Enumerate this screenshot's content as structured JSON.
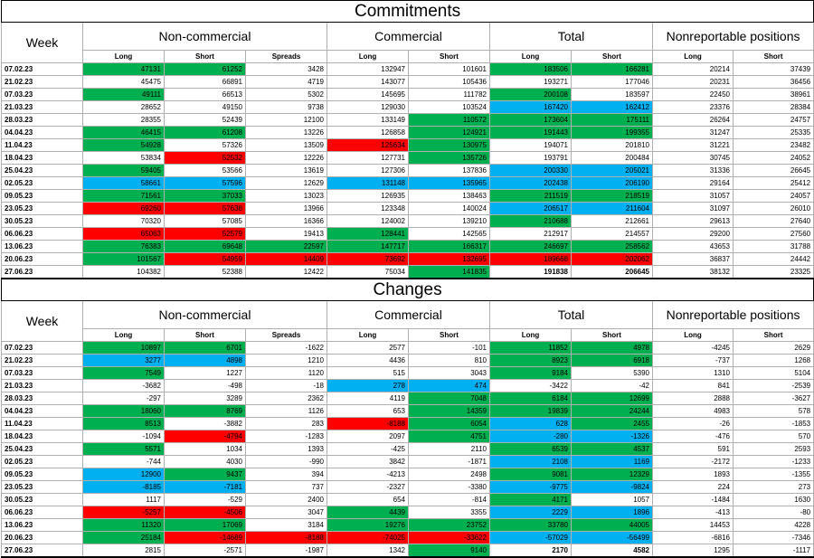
{
  "colors": {
    "green": "#00b050",
    "blue": "#00b0f0",
    "red": "#ff0000"
  },
  "commitments": {
    "title": "Commitments",
    "week_label": "Week",
    "groups": [
      "Non-commercial",
      "Commercial",
      "Total",
      "Nonreportable positions"
    ],
    "subheaders": [
      "Long",
      "Short",
      "Spreads",
      "Long",
      "Short",
      "Long",
      "Short",
      "Long",
      "Short"
    ],
    "rows": [
      {
        "week": "07.02.23",
        "v": [
          "47131",
          "61252",
          "3428",
          "132947",
          "101601",
          "183506",
          "166281",
          "20214",
          "37439"
        ],
        "c": [
          "g",
          "g",
          "",
          "",
          "",
          "g",
          "g",
          "",
          ""
        ]
      },
      {
        "week": "21.02.23",
        "v": [
          "45475",
          "66891",
          "4719",
          "143077",
          "105436",
          "193271",
          "177046",
          "20231",
          "36456"
        ],
        "c": [
          "",
          "",
          "",
          "",
          "",
          "",
          "",
          "",
          ""
        ]
      },
      {
        "week": "07.03.23",
        "v": [
          "49111",
          "66513",
          "5302",
          "145695",
          "111782",
          "200108",
          "183597",
          "22450",
          "38961"
        ],
        "c": [
          "g",
          "",
          "",
          "",
          "",
          "g",
          "",
          "",
          ""
        ]
      },
      {
        "week": "21.03.23",
        "v": [
          "28652",
          "49150",
          "9738",
          "129030",
          "103524",
          "167420",
          "162412",
          "23376",
          "28384"
        ],
        "c": [
          "",
          "",
          "",
          "",
          "",
          "b",
          "b",
          "",
          ""
        ]
      },
      {
        "week": "28.03.23",
        "v": [
          "28355",
          "52439",
          "12100",
          "133149",
          "110572",
          "173604",
          "175111",
          "26264",
          "24757"
        ],
        "c": [
          "",
          "",
          "",
          "",
          "g",
          "g",
          "g",
          "",
          ""
        ]
      },
      {
        "week": "04.04.23",
        "v": [
          "46415",
          "61208",
          "13226",
          "126858",
          "124921",
          "191443",
          "199355",
          "31247",
          "25335"
        ],
        "c": [
          "g",
          "g",
          "",
          "",
          "g",
          "g",
          "g",
          "",
          ""
        ]
      },
      {
        "week": "11.04.23",
        "v": [
          "54928",
          "57326",
          "13509",
          "125634",
          "130975",
          "194071",
          "201810",
          "31221",
          "23482"
        ],
        "c": [
          "g",
          "",
          "",
          "r",
          "g",
          "",
          "",
          "",
          ""
        ]
      },
      {
        "week": "18.04.23",
        "v": [
          "53834",
          "52532",
          "12226",
          "127731",
          "135726",
          "193791",
          "200484",
          "30745",
          "24052"
        ],
        "c": [
          "",
          "r",
          "",
          "",
          "g",
          "",
          "",
          "",
          ""
        ]
      },
      {
        "week": "25.04.23",
        "v": [
          "59405",
          "53566",
          "13619",
          "127306",
          "137836",
          "200330",
          "205021",
          "31336",
          "26645"
        ],
        "c": [
          "g",
          "",
          "",
          "",
          "",
          "b",
          "b",
          "",
          ""
        ]
      },
      {
        "week": "02.05.23",
        "v": [
          "58661",
          "57596",
          "12629",
          "131148",
          "135965",
          "202438",
          "206190",
          "29164",
          "25412"
        ],
        "c": [
          "b",
          "b",
          "",
          "b",
          "b",
          "b",
          "b",
          "",
          ""
        ]
      },
      {
        "week": "09.05.23",
        "v": [
          "71561",
          "37033",
          "13023",
          "126935",
          "138463",
          "211519",
          "218519",
          "31057",
          "24057"
        ],
        "c": [
          "g",
          "g",
          "",
          "",
          "",
          "g",
          "g",
          "",
          ""
        ]
      },
      {
        "week": "23.05.23",
        "v": [
          "69260",
          "57638",
          "13966",
          "123348",
          "140024",
          "206517",
          "211604",
          "31097",
          "26010"
        ],
        "c": [
          "r",
          "r",
          "",
          "",
          "",
          "b",
          "b",
          "",
          ""
        ]
      },
      {
        "week": "30.05.23",
        "v": [
          "70320",
          "57085",
          "16366",
          "124002",
          "139210",
          "210688",
          "212661",
          "29613",
          "27640"
        ],
        "c": [
          "",
          "",
          "",
          "",
          "",
          "g",
          "",
          "",
          ""
        ]
      },
      {
        "week": "06.06.23",
        "v": [
          "65063",
          "52579",
          "19413",
          "128441",
          "142565",
          "212917",
          "214557",
          "29200",
          "27560"
        ],
        "c": [
          "r",
          "r",
          "",
          "g",
          "",
          "",
          "",
          "",
          ""
        ]
      },
      {
        "week": "13.06.23",
        "v": [
          "76383",
          "69648",
          "22597",
          "147717",
          "166317",
          "246697",
          "258562",
          "43653",
          "31788"
        ],
        "c": [
          "g",
          "g",
          "g",
          "g",
          "g",
          "g",
          "g",
          "",
          ""
        ]
      },
      {
        "week": "20.06.23",
        "v": [
          "101567",
          "54959",
          "14409",
          "73692",
          "132695",
          "189668",
          "202062",
          "36837",
          "24442"
        ],
        "c": [
          "g",
          "r",
          "r",
          "r",
          "r",
          "r",
          "r",
          "",
          ""
        ]
      },
      {
        "week": "27.06.23",
        "v": [
          "104382",
          "52388",
          "12422",
          "75034",
          "141835",
          "191838",
          "206645",
          "38132",
          "23325"
        ],
        "c": [
          "",
          "",
          "",
          "",
          "g",
          "",
          "",
          "",
          ""
        ],
        "bold": [
          false,
          false,
          false,
          false,
          false,
          true,
          true,
          false,
          false
        ]
      }
    ]
  },
  "changes": {
    "title": "Changes",
    "week_label": "Week",
    "groups": [
      "Non-commercial",
      "Commercial",
      "Total",
      "Nonreportable positions"
    ],
    "subheaders": [
      "Long",
      "Short",
      "Spreads",
      "Long",
      "Short",
      "Long",
      "Short",
      "Long",
      "Short"
    ],
    "rows": [
      {
        "week": "07.02.23",
        "v": [
          "10897",
          "6701",
          "-1622",
          "2577",
          "-101",
          "11852",
          "4978",
          "-4245",
          "2629"
        ],
        "c": [
          "g",
          "g",
          "",
          "",
          "",
          "g",
          "g",
          "",
          ""
        ]
      },
      {
        "week": "21.02.23",
        "v": [
          "3277",
          "4898",
          "1210",
          "4436",
          "810",
          "8923",
          "6918",
          "-737",
          "1268"
        ],
        "c": [
          "b",
          "b",
          "",
          "",
          "",
          "g",
          "g",
          "",
          ""
        ]
      },
      {
        "week": "07.03.23",
        "v": [
          "7549",
          "1227",
          "1120",
          "515",
          "3043",
          "9184",
          "5390",
          "1310",
          "5104"
        ],
        "c": [
          "g",
          "",
          "",
          "",
          "",
          "g",
          "",
          "",
          ""
        ]
      },
      {
        "week": "21.03.23",
        "v": [
          "-3682",
          "-498",
          "-18",
          "278",
          "474",
          "-3422",
          "-42",
          "841",
          "-2539"
        ],
        "c": [
          "",
          "",
          "",
          "b",
          "b",
          "",
          "",
          "",
          ""
        ]
      },
      {
        "week": "28.03.23",
        "v": [
          "-297",
          "3289",
          "2362",
          "4119",
          "7048",
          "6184",
          "12699",
          "2888",
          "-3627"
        ],
        "c": [
          "",
          "",
          "",
          "",
          "g",
          "g",
          "g",
          "",
          ""
        ]
      },
      {
        "week": "04.04.23",
        "v": [
          "18060",
          "8769",
          "1126",
          "653",
          "14359",
          "19839",
          "24244",
          "4983",
          "578"
        ],
        "c": [
          "g",
          "g",
          "",
          "",
          "g",
          "g",
          "g",
          "",
          ""
        ]
      },
      {
        "week": "11.04.23",
        "v": [
          "8513",
          "-3882",
          "283",
          "-8188",
          "6054",
          "628",
          "2455",
          "-26",
          "-1853"
        ],
        "c": [
          "g",
          "",
          "",
          "r",
          "g",
          "b",
          "g",
          "",
          ""
        ]
      },
      {
        "week": "18.04.23",
        "v": [
          "-1094",
          "-4794",
          "-1283",
          "2097",
          "4751",
          "-280",
          "-1326",
          "-476",
          "570"
        ],
        "c": [
          "",
          "r",
          "",
          "",
          "g",
          "b",
          "b",
          "",
          ""
        ]
      },
      {
        "week": "25.04.23",
        "v": [
          "5571",
          "1034",
          "1393",
          "-425",
          "2110",
          "6539",
          "4537",
          "591",
          "2593"
        ],
        "c": [
          "g",
          "",
          "",
          "",
          "",
          "g",
          "g",
          "",
          ""
        ]
      },
      {
        "week": "02.05.23",
        "v": [
          "-744",
          "4030",
          "-990",
          "3842",
          "-1871",
          "2108",
          "1169",
          "-2172",
          "-1233"
        ],
        "c": [
          "",
          "",
          "",
          "",
          "",
          "b",
          "b",
          "",
          ""
        ]
      },
      {
        "week": "09.05.23",
        "v": [
          "12900",
          "9437",
          "394",
          "-4213",
          "2498",
          "9081",
          "12329",
          "1893",
          "-1355"
        ],
        "c": [
          "b",
          "g",
          "",
          "",
          "",
          "g",
          "g",
          "",
          ""
        ]
      },
      {
        "week": "23.05.23",
        "v": [
          "-8185",
          "-7181",
          "737",
          "-2327",
          "-3380",
          "-9775",
          "-9824",
          "224",
          "273"
        ],
        "c": [
          "b",
          "b",
          "",
          "",
          "",
          "b",
          "b",
          "",
          ""
        ]
      },
      {
        "week": "30.05.23",
        "v": [
          "1117",
          "-529",
          "2400",
          "654",
          "-814",
          "4171",
          "1057",
          "-1484",
          "1630"
        ],
        "c": [
          "",
          "",
          "",
          "",
          "",
          "g",
          "",
          "",
          ""
        ]
      },
      {
        "week": "06.06.23",
        "v": [
          "-5257",
          "-4506",
          "3047",
          "4439",
          "3355",
          "2229",
          "1896",
          "-413",
          "-80"
        ],
        "c": [
          "r",
          "r",
          "",
          "g",
          "",
          "b",
          "b",
          "",
          ""
        ]
      },
      {
        "week": "13.06.23",
        "v": [
          "11320",
          "17069",
          "3184",
          "19276",
          "23752",
          "33780",
          "44005",
          "14453",
          "4228"
        ],
        "c": [
          "g",
          "g",
          "",
          "g",
          "g",
          "g",
          "g",
          "",
          ""
        ]
      },
      {
        "week": "20.06.23",
        "v": [
          "25184",
          "-14689",
          "-8188",
          "-74025",
          "-33622",
          "-57029",
          "-56499",
          "-6816",
          "-7346"
        ],
        "c": [
          "g",
          "r",
          "r",
          "r",
          "r",
          "b",
          "b",
          "",
          ""
        ]
      },
      {
        "week": "27.06.23",
        "v": [
          "2815",
          "-2571",
          "-1987",
          "1342",
          "9140",
          "2170",
          "4582",
          "1295",
          "-1117"
        ],
        "c": [
          "",
          "",
          "",
          "",
          "g",
          "",
          "",
          "",
          ""
        ],
        "bold": [
          false,
          false,
          false,
          false,
          false,
          true,
          true,
          false,
          false
        ]
      }
    ]
  }
}
